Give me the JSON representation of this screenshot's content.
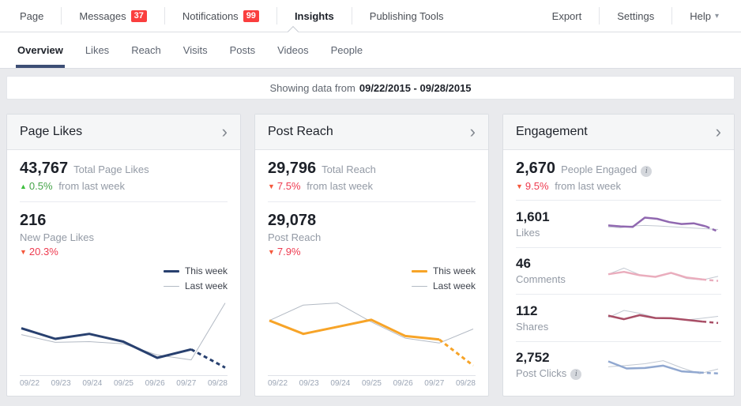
{
  "topnav": {
    "left": [
      {
        "label": "Page"
      },
      {
        "label": "Messages",
        "badge": "37"
      },
      {
        "label": "Notifications",
        "badge": "99"
      },
      {
        "label": "Insights"
      },
      {
        "label": "Publishing Tools"
      }
    ],
    "right": [
      {
        "label": "Export"
      },
      {
        "label": "Settings"
      },
      {
        "label": "Help"
      }
    ]
  },
  "subnav": {
    "items": [
      {
        "label": "Overview"
      },
      {
        "label": "Likes"
      },
      {
        "label": "Reach"
      },
      {
        "label": "Visits"
      },
      {
        "label": "Posts"
      },
      {
        "label": "Videos"
      },
      {
        "label": "People"
      }
    ]
  },
  "banner": {
    "prefix": "Showing data from",
    "date_range": "09/22/2015 - 09/28/2015"
  },
  "icons": {
    "up_arrow": "▲",
    "down_arrow": "▼",
    "chevron_right": "›",
    "help_caret": "▾",
    "info": "i"
  },
  "cards": {
    "page_likes": {
      "title": "Page Likes",
      "stat1": {
        "value": "43,767",
        "label": "Total Page Likes",
        "change": "0.5%",
        "suffix": "from last week",
        "direction": "up"
      },
      "stat2": {
        "value": "216",
        "label": "New Page Likes",
        "change": "20.3%",
        "direction": "down"
      }
    },
    "post_reach": {
      "title": "Post Reach",
      "stat1": {
        "value": "29,796",
        "label": "Total Reach",
        "change": "7.5%",
        "suffix": "from last week",
        "direction": "down"
      },
      "stat2": {
        "value": "29,078",
        "label": "Post Reach",
        "change": "7.9%",
        "direction": "down"
      }
    },
    "engagement": {
      "title": "Engagement",
      "stat1": {
        "value": "2,670",
        "label": "People Engaged",
        "change": "9.5%",
        "suffix": "from last week",
        "direction": "down"
      },
      "rows": [
        {
          "value": "1,601",
          "label": "Likes"
        },
        {
          "value": "46",
          "label": "Comments"
        },
        {
          "value": "112",
          "label": "Shares"
        },
        {
          "value": "2,752",
          "label": "Post Clicks"
        }
      ]
    }
  },
  "colors": {
    "badge_red": "#fa3e3e",
    "positive_green": "#3dbf3d",
    "negative_red": "#ee3a4f",
    "active_tab_underline": "#3d4e75",
    "this_week_navy": "#28406f",
    "this_week_orange": "#f7a428",
    "compare_gray": "#b3bac4"
  },
  "chart_data": [
    {
      "id": "page-likes-trend",
      "type": "line",
      "legend": "top-right",
      "y_axis": "hidden",
      "ylim": [
        0,
        100
      ],
      "x": [
        "09/22",
        "09/23",
        "09/24",
        "09/25",
        "09/26",
        "09/27",
        "09/28"
      ],
      "series": [
        {
          "name": "This week",
          "color": "#28406f",
          "width": 3,
          "dash_last_segment": true,
          "values": [
            60,
            45,
            52,
            41,
            18,
            30,
            4
          ]
        },
        {
          "name": "Last week",
          "color": "#b3bac4",
          "width": 1,
          "dash_last_segment": false,
          "values": [
            51,
            40,
            41,
            38,
            22,
            15,
            96
          ]
        }
      ]
    },
    {
      "id": "post-reach-trend",
      "type": "line",
      "legend": "top-right",
      "y_axis": "hidden",
      "ylim": [
        0,
        100
      ],
      "x": [
        "09/22",
        "09/23",
        "09/24",
        "09/25",
        "09/26",
        "09/27",
        "09/28"
      ],
      "series": [
        {
          "name": "This week",
          "color": "#f7a428",
          "width": 3,
          "dash_last_segment": true,
          "values": [
            71,
            52,
            62,
            72,
            49,
            44,
            7
          ]
        },
        {
          "name": "Last week",
          "color": "#b3bac4",
          "width": 1,
          "dash_last_segment": false,
          "values": [
            71,
            93,
            96,
            69,
            46,
            39,
            59
          ]
        }
      ]
    },
    {
      "id": "likes-sparkline",
      "type": "sparkline",
      "ylim": [
        0,
        100
      ],
      "series": [
        {
          "name": "This week",
          "color": "#9068b0",
          "width": 2.5,
          "dash_last_segment": true,
          "values": [
            42,
            38,
            36,
            75,
            70,
            56,
            48,
            51,
            38,
            16
          ]
        },
        {
          "name": "Last week",
          "color": "#c3c9d2",
          "width": 1,
          "dash_last_segment": false,
          "values": [
            36,
            32,
            40,
            42,
            40,
            37,
            34,
            31,
            28,
            25
          ]
        }
      ]
    },
    {
      "id": "comments-sparkline",
      "type": "sparkline",
      "ylim": [
        0,
        100
      ],
      "series": [
        {
          "name": "This week",
          "color": "#eaadbd",
          "width": 2.5,
          "dash_last_segment": true,
          "values": [
            36,
            46,
            32,
            25,
            42,
            22,
            14,
            8
          ]
        },
        {
          "name": "Last week",
          "color": "#c3c9d2",
          "width": 1,
          "dash_last_segment": false,
          "values": [
            36,
            62,
            34,
            24,
            40,
            18,
            12,
            27
          ]
        }
      ]
    },
    {
      "id": "shares-sparkline",
      "type": "sparkline",
      "ylim": [
        0,
        100
      ],
      "series": [
        {
          "name": "This week",
          "color": "#a84e66",
          "width": 2.5,
          "dash_last_segment": true,
          "values": [
            58,
            43,
            60,
            48,
            47,
            40,
            33,
            27
          ]
        },
        {
          "name": "Last week",
          "color": "#c3c9d2",
          "width": 1,
          "dash_last_segment": false,
          "values": [
            50,
            80,
            68,
            50,
            45,
            40,
            47,
            55
          ]
        }
      ]
    },
    {
      "id": "post-clicks-sparkline",
      "type": "sparkline",
      "ylim": [
        0,
        100
      ],
      "series": [
        {
          "name": "This week",
          "color": "#91a8d0",
          "width": 2.5,
          "dash_last_segment": true,
          "values": [
            65,
            35,
            37,
            47,
            23,
            18,
            14
          ]
        },
        {
          "name": "Last week",
          "color": "#c3c9d2",
          "width": 1,
          "dash_last_segment": false,
          "values": [
            42,
            48,
            55,
            68,
            38,
            13,
            33
          ]
        }
      ]
    }
  ]
}
